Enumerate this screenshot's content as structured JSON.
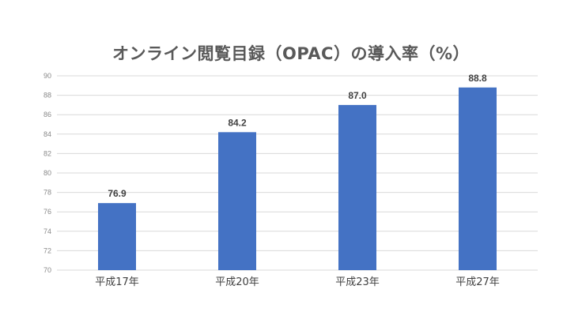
{
  "chart_data": {
    "type": "bar",
    "title": "オンライン閲覧目録（OPAC）の導入率（%）",
    "categories": [
      "平成17年",
      "平成20年",
      "平成23年",
      "平成27年"
    ],
    "values": [
      76.9,
      84.2,
      87.0,
      88.8
    ],
    "data_labels": [
      "76.9",
      "84.2",
      "87.0",
      "88.8"
    ],
    "yticks": [
      "70",
      "72",
      "74",
      "76",
      "78",
      "80",
      "82",
      "84",
      "86",
      "88",
      "90"
    ],
    "ylim": [
      70,
      90
    ],
    "xlabel": "",
    "ylabel": "",
    "grid": true,
    "legend": "none",
    "colors": {
      "bar": "#4472C4",
      "grid": "#d9d9d9",
      "title": "#595959"
    }
  }
}
